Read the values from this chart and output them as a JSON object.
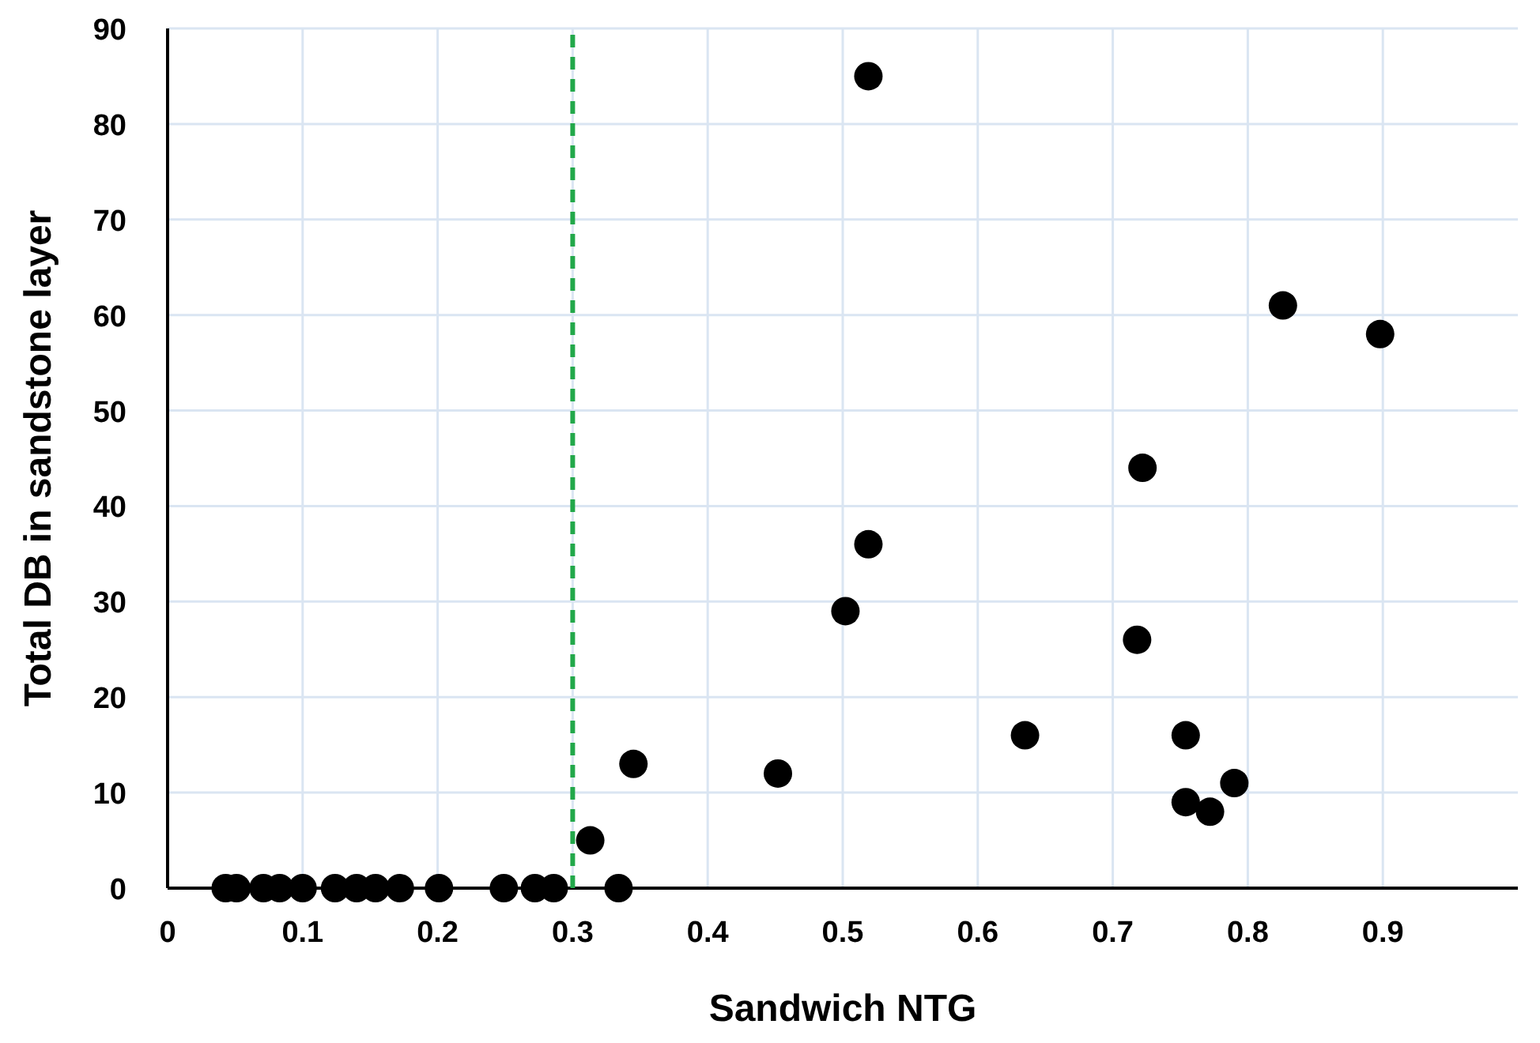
{
  "chart_data": {
    "type": "scatter",
    "xlabel": "Sandwich NTG",
    "ylabel": "Total DB in sandstone layer",
    "xlim": [
      0,
      1
    ],
    "xticks": [
      0,
      0.1,
      0.2,
      0.3,
      0.4,
      0.5,
      0.6,
      0.7,
      0.8,
      0.9
    ],
    "ylim": [
      0,
      90
    ],
    "yticks": [
      0,
      10,
      20,
      30,
      40,
      50,
      60,
      70,
      80,
      90
    ],
    "grid": true,
    "marker": "circle",
    "series": [
      {
        "color": "#000000",
        "x": [
          0.043,
          0.051,
          0.071,
          0.083,
          0.1,
          0.124,
          0.14,
          0.154,
          0.172,
          0.201,
          0.249,
          0.272,
          0.286,
          0.334,
          0.313,
          0.345,
          0.452,
          0.502,
          0.519,
          0.519,
          0.635,
          0.718,
          0.722,
          0.754,
          0.754,
          0.772,
          0.79,
          0.826,
          0.898
        ],
        "values": [
          0,
          0,
          0,
          0,
          0,
          0,
          0,
          0,
          0,
          0,
          0,
          0,
          0,
          0,
          5,
          13,
          12,
          29,
          36,
          85,
          16,
          26,
          44,
          16,
          9,
          8,
          11,
          61,
          58
        ]
      }
    ],
    "ref_lines": [
      {
        "axis": "x",
        "value": 0.3,
        "color": "#22a84a",
        "line_style": "dashed"
      }
    ]
  }
}
